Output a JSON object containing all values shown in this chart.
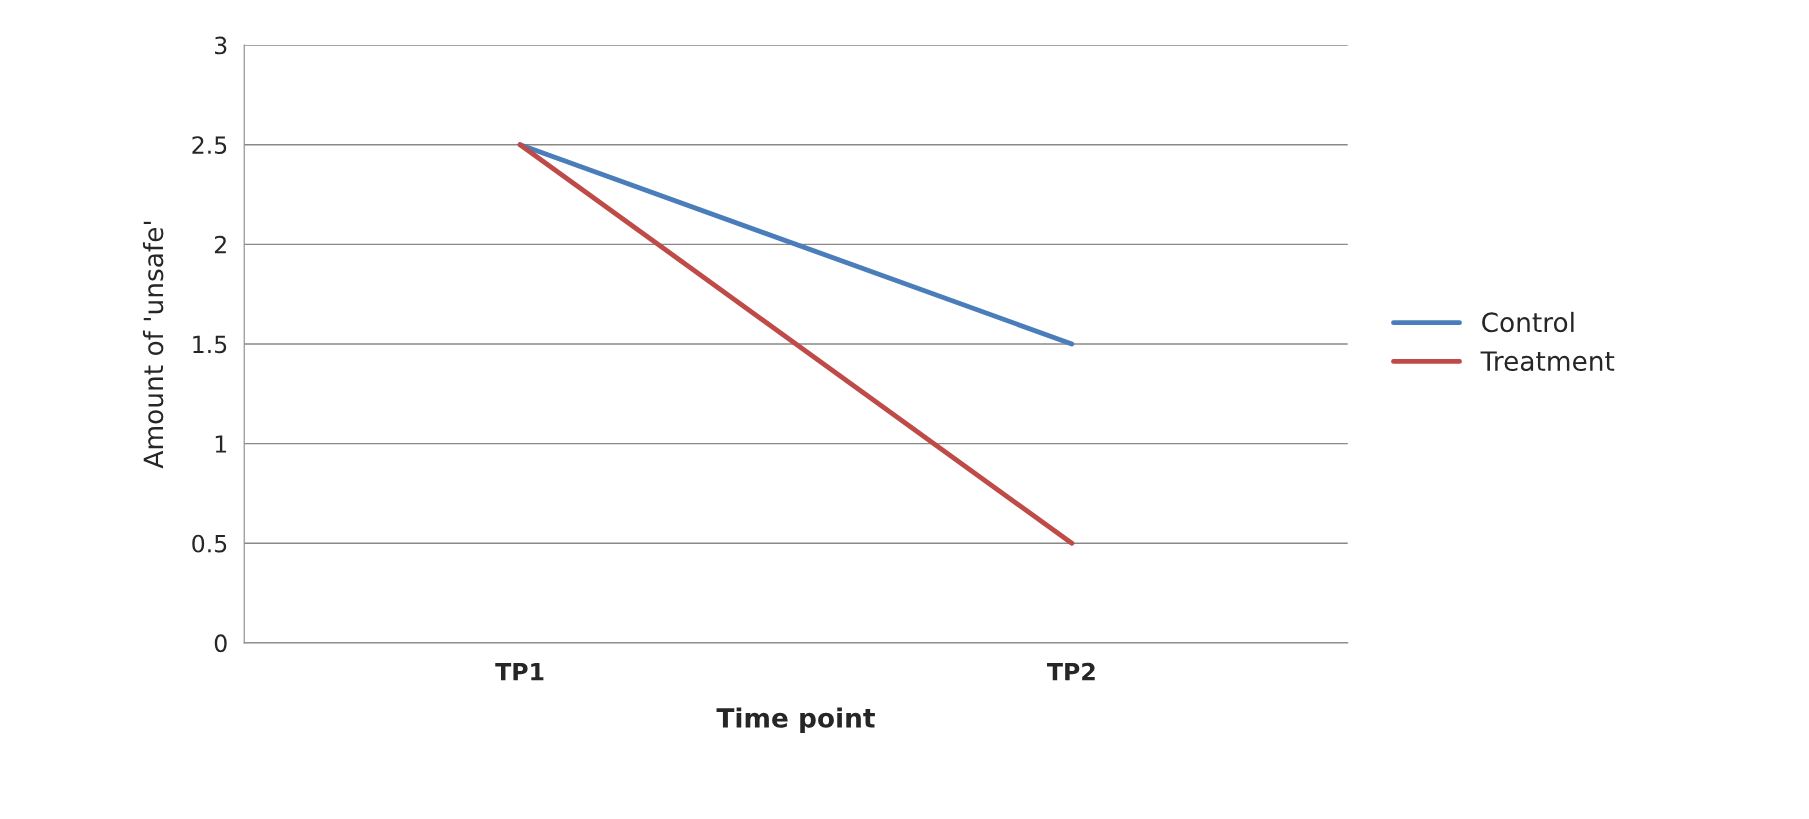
{
  "chart_data": {
    "type": "line",
    "xlabel": "Time point",
    "ylabel": "Amount of 'unsafe'",
    "categories": [
      "TP1",
      "TP2"
    ],
    "series": [
      {
        "name": "Control",
        "color": "#4a7ebb",
        "values": [
          2.5,
          1.5
        ]
      },
      {
        "name": "Treatment",
        "color": "#be4b48",
        "values": [
          2.5,
          0.5
        ]
      }
    ],
    "ylim": [
      0,
      3
    ],
    "yticks": [
      0,
      0.5,
      1,
      1.5,
      2,
      2.5,
      3
    ],
    "grid": "y",
    "legend": "right",
    "marker": "none",
    "line_style": "solid"
  }
}
